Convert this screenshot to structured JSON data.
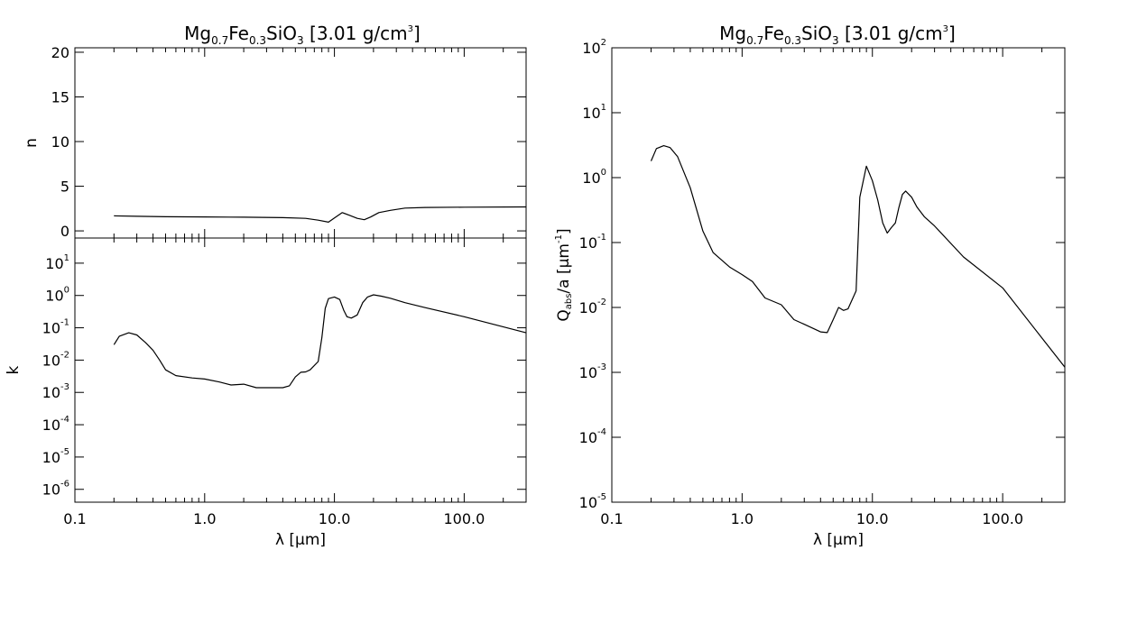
{
  "chart_data": [
    {
      "panel": "n",
      "type": "line",
      "title": "Mg0.7Fe0.3SiO3 [3.01 g/cm3]",
      "xlabel": "λ [μm]",
      "ylabel": "n",
      "x_scale": "log",
      "y_scale": "linear",
      "xlim": [
        0.1,
        300
      ],
      "ylim": [
        -0.8,
        20.5
      ],
      "xticks": [
        "0.1",
        "1.0",
        "10.0",
        "100.0"
      ],
      "yticks": [
        "0",
        "5",
        "10",
        "15",
        "20"
      ],
      "series": [
        {
          "x": [
            0.2,
            0.3,
            0.5,
            1.0,
            2.0,
            4.0,
            6.0,
            7.5,
            9.0,
            10.0,
            11.5,
            13.0,
            15.0,
            17.0,
            19.0,
            22.0,
            27.0,
            35.0,
            50.0,
            100.0,
            300.0
          ],
          "y": [
            1.68,
            1.63,
            1.58,
            1.56,
            1.53,
            1.48,
            1.4,
            1.2,
            0.98,
            1.45,
            2.05,
            1.75,
            1.4,
            1.25,
            1.55,
            2.05,
            2.3,
            2.55,
            2.62,
            2.65,
            2.68
          ]
        }
      ]
    },
    {
      "panel": "k",
      "type": "line",
      "xlabel": "λ [μm]",
      "ylabel": "k",
      "x_scale": "log",
      "y_scale": "log",
      "xlim": [
        0.1,
        300
      ],
      "ylim": [
        4e-07,
        60
      ],
      "xticks": [
        "0.1",
        "1.0",
        "10.0",
        "100.0"
      ],
      "yticks": [
        "10^-6",
        "10^-5",
        "10^-4",
        "10^-3",
        "10^-2",
        "10^-1",
        "10^0",
        "10^1"
      ],
      "series": [
        {
          "x": [
            0.2,
            0.22,
            0.26,
            0.3,
            0.35,
            0.4,
            0.45,
            0.5,
            0.6,
            0.8,
            1.0,
            1.3,
            1.6,
            2.0,
            2.5,
            3.0,
            4.0,
            4.5,
            5.0,
            5.5,
            6.0,
            6.5,
            7.5,
            8.0,
            8.5,
            9.0,
            10.0,
            11.0,
            11.8,
            12.5,
            13.5,
            15.0,
            16.5,
            18.0,
            20.0,
            23.0,
            27.0,
            35.0,
            50.0,
            100.0,
            300.0
          ],
          "y": [
            0.03,
            0.055,
            0.07,
            0.06,
            0.035,
            0.02,
            0.01,
            0.005,
            0.0033,
            0.0028,
            0.0026,
            0.0021,
            0.0017,
            0.0018,
            0.0014,
            0.0014,
            0.0014,
            0.0016,
            0.003,
            0.0042,
            0.0043,
            0.005,
            0.009,
            0.05,
            0.4,
            0.8,
            0.9,
            0.75,
            0.35,
            0.22,
            0.2,
            0.25,
            0.6,
            0.9,
            1.05,
            0.95,
            0.82,
            0.6,
            0.42,
            0.22,
            0.07
          ]
        }
      ]
    },
    {
      "panel": "Qabs",
      "type": "line",
      "title": "Mg0.7Fe0.3SiO3 [3.01 g/cm3]",
      "xlabel": "λ [μm]",
      "ylabel": "Qabs/a [μm-1]",
      "x_scale": "log",
      "y_scale": "log",
      "xlim": [
        0.1,
        300
      ],
      "ylim": [
        1e-05,
        100
      ],
      "xticks": [
        "0.1",
        "1.0",
        "10.0",
        "100.0"
      ],
      "yticks": [
        "10^-5",
        "10^-4",
        "10^-3",
        "10^-2",
        "10^-1",
        "10^0",
        "10^1",
        "10^2"
      ],
      "series": [
        {
          "x": [
            0.2,
            0.22,
            0.25,
            0.28,
            0.32,
            0.4,
            0.5,
            0.6,
            0.8,
            1.0,
            1.2,
            1.5,
            2.0,
            2.5,
            3.0,
            4.0,
            4.5,
            5.0,
            5.5,
            6.0,
            6.5,
            7.5,
            8.0,
            9.0,
            10.0,
            11.0,
            12.0,
            13.0,
            14.0,
            15.0,
            16.0,
            17.0,
            18.0,
            20.0,
            22.0,
            25.0,
            30.0,
            50.0,
            100.0,
            300.0
          ],
          "y": [
            1.8,
            2.8,
            3.1,
            2.9,
            2.1,
            0.7,
            0.15,
            0.07,
            0.042,
            0.032,
            0.025,
            0.014,
            0.011,
            0.0065,
            0.0055,
            0.0042,
            0.0041,
            0.0065,
            0.01,
            0.009,
            0.0095,
            0.018,
            0.5,
            1.5,
            0.9,
            0.45,
            0.2,
            0.14,
            0.17,
            0.2,
            0.35,
            0.55,
            0.62,
            0.5,
            0.35,
            0.25,
            0.18,
            0.06,
            0.02,
            0.0012
          ]
        }
      ]
    }
  ]
}
